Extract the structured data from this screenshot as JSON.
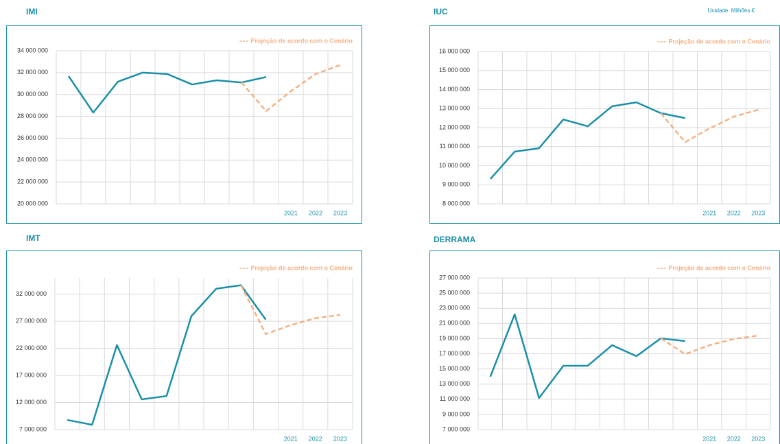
{
  "annotation": "Unidade: Milhões €",
  "chart_data": [
    {
      "type": "line",
      "title": "IMI",
      "categories": [
        null,
        null,
        null,
        null,
        null,
        null,
        null,
        null,
        null,
        "2021",
        "2022",
        "2023"
      ],
      "ylim": [
        20000000,
        34000000
      ],
      "yticks": [
        {
          "value": 20000000,
          "label": "20 000 000"
        },
        {
          "value": 22000000,
          "label": "22 000 000"
        },
        {
          "value": 24000000,
          "label": "24 000 000"
        },
        {
          "value": 26000000,
          "label": "26 000 000"
        },
        {
          "value": 28000000,
          "label": "28 000 000"
        },
        {
          "value": 30000000,
          "label": "30 000 000"
        },
        {
          "value": 32000000,
          "label": "32 000 000"
        },
        {
          "value": 34000000,
          "label": "34 000 000"
        }
      ],
      "grid": true,
      "series": [
        {
          "color": "#1a8fa8",
          "values": [
            31680000,
            28350000,
            31180000,
            32000000,
            31870000,
            30920000,
            31300000,
            31100000,
            31600000,
            null,
            null,
            null
          ]
        },
        {
          "name": "Projeção de acordo com o Cenário",
          "color": "#f4b183",
          "dashed": true,
          "values": [
            null,
            null,
            null,
            null,
            null,
            null,
            null,
            31100000,
            28480000,
            30300000,
            31870000,
            32700000
          ]
        }
      ]
    },
    {
      "type": "line",
      "title": "IUC",
      "categories": [
        null,
        null,
        null,
        null,
        null,
        null,
        null,
        null,
        null,
        "2021",
        "2022",
        "2023"
      ],
      "ylim": [
        8000000,
        16000000
      ],
      "yticks": [
        {
          "value": 8000000,
          "label": "8 000 000"
        },
        {
          "value": 9000000,
          "label": "9 000 000"
        },
        {
          "value": 10000000,
          "label": "10 000 000"
        },
        {
          "value": 11000000,
          "label": "11 000 000"
        },
        {
          "value": 12000000,
          "label": "12 000 000"
        },
        {
          "value": 13000000,
          "label": "13 000 000"
        },
        {
          "value": 14000000,
          "label": "14 000 000"
        },
        {
          "value": 15000000,
          "label": "15 000 000"
        },
        {
          "value": 16000000,
          "label": "16 000 000"
        }
      ],
      "grid": true,
      "series": [
        {
          "color": "#1a8fa8",
          "values": [
            9300000,
            10740000,
            10920000,
            12430000,
            12070000,
            13120000,
            13330000,
            12760000,
            12500000,
            null,
            null,
            null
          ]
        },
        {
          "name": "Projeção de acordo com o Cenário",
          "color": "#f4b183",
          "dashed": true,
          "values": [
            null,
            null,
            null,
            null,
            null,
            null,
            null,
            12760000,
            11240000,
            11960000,
            12580000,
            12940000
          ]
        }
      ]
    },
    {
      "type": "line",
      "title": "IMT",
      "categories": [
        null,
        null,
        null,
        null,
        null,
        null,
        null,
        null,
        null,
        "2021",
        "2022",
        "2023"
      ],
      "ylim": [
        7000000,
        35000000
      ],
      "yticks": [
        {
          "value": 7000000,
          "label": "7 000 000"
        },
        {
          "value": 12000000,
          "label": "12 000 000"
        },
        {
          "value": 17000000,
          "label": "17 000 000"
        },
        {
          "value": 22000000,
          "label": "22 000 000"
        },
        {
          "value": 27000000,
          "label": "27 000 000"
        },
        {
          "value": 32000000,
          "label": "32 000 000"
        }
      ],
      "grid": true,
      "series": [
        {
          "color": "#1a8fa8",
          "values": [
            8780000,
            7890000,
            22600000,
            12580000,
            13200000,
            27940000,
            33000000,
            33650000,
            27300000,
            null,
            null,
            null
          ]
        },
        {
          "name": "Projeção de acordo com o Cenário",
          "color": "#f4b183",
          "dashed": true,
          "values": [
            null,
            null,
            null,
            null,
            null,
            null,
            null,
            33650000,
            24640000,
            26290000,
            27560000,
            28190000
          ]
        }
      ]
    },
    {
      "type": "line",
      "title": "DERRAMA",
      "categories": [
        null,
        null,
        null,
        null,
        null,
        null,
        null,
        null,
        null,
        "2021",
        "2022",
        "2023"
      ],
      "ylim": [
        7000000,
        27000000
      ],
      "yticks": [
        {
          "value": 7000000,
          "label": "7 000 000"
        },
        {
          "value": 9000000,
          "label": "9 000 000"
        },
        {
          "value": 11000000,
          "label": "11 000 000"
        },
        {
          "value": 13000000,
          "label": "13 000 000"
        },
        {
          "value": 15000000,
          "label": "15 000 000"
        },
        {
          "value": 17000000,
          "label": "17 000 000"
        },
        {
          "value": 19000000,
          "label": "19 000 000"
        },
        {
          "value": 21000000,
          "label": "21 000 000"
        },
        {
          "value": 23000000,
          "label": "23 000 000"
        },
        {
          "value": 25000000,
          "label": "25 000 000"
        },
        {
          "value": 27000000,
          "label": "27 000 000"
        }
      ],
      "grid": true,
      "series": [
        {
          "color": "#1a8fa8",
          "values": [
            13970000,
            22200000,
            11160000,
            15420000,
            15420000,
            18130000,
            16680000,
            19030000,
            18670000,
            null,
            null,
            null
          ]
        },
        {
          "name": "Projeção de acordo com o Cenário",
          "color": "#f4b183",
          "dashed": true,
          "values": [
            null,
            null,
            null,
            null,
            null,
            null,
            null,
            19030000,
            16950000,
            18130000,
            18950000,
            19400000
          ]
        }
      ]
    }
  ]
}
